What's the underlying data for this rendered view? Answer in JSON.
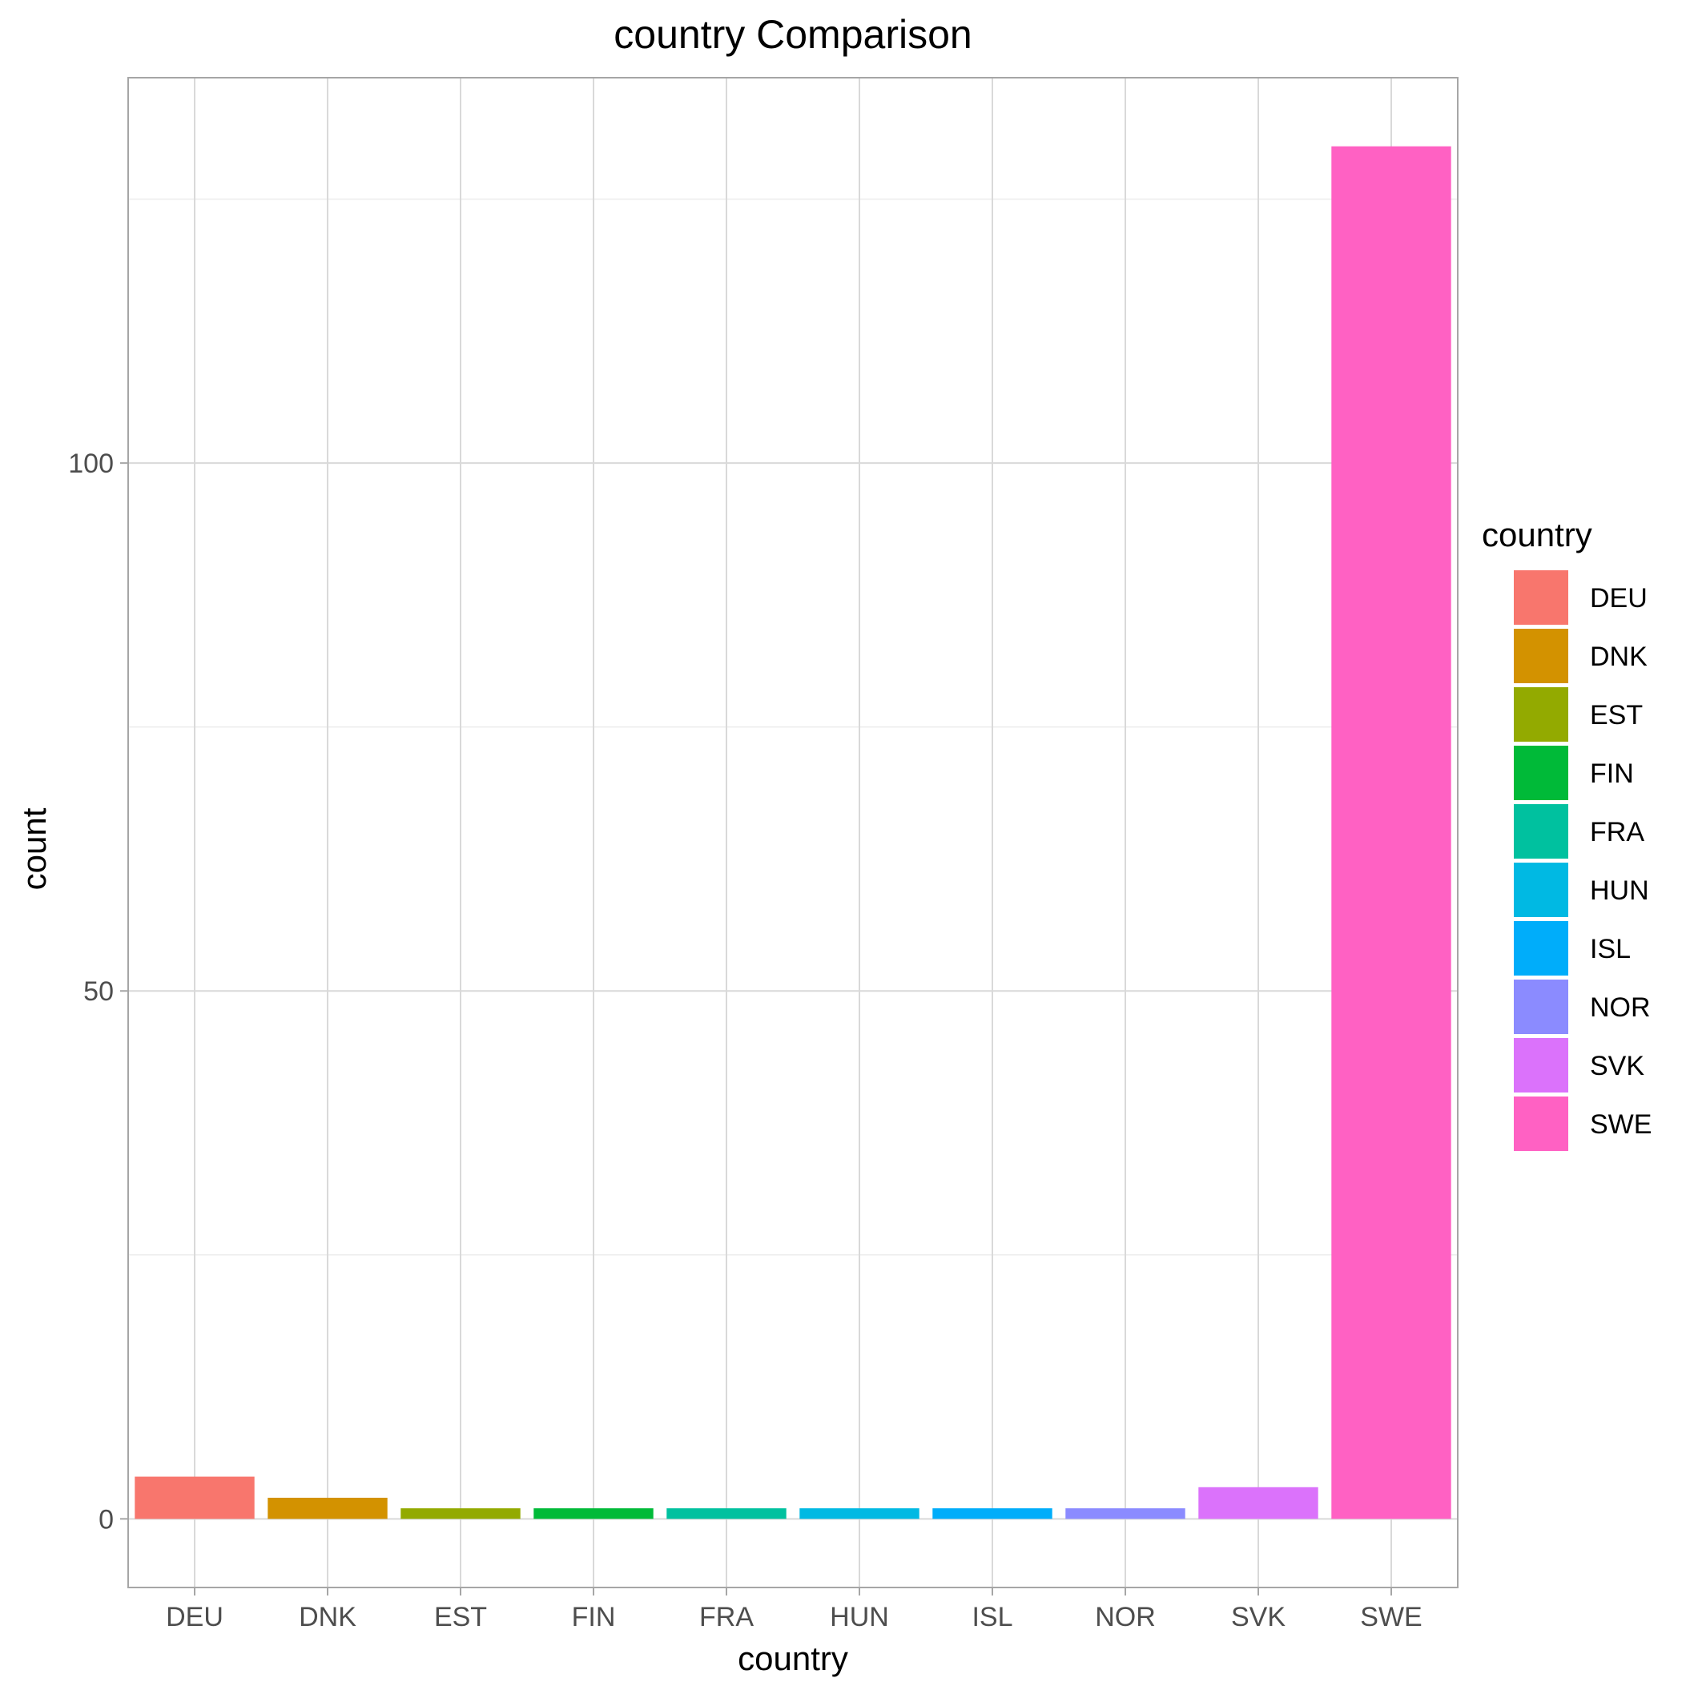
{
  "chart_data": {
    "type": "bar",
    "title": "country Comparison",
    "xlabel": "country",
    "ylabel": "count",
    "categories": [
      "DEU",
      "DNK",
      "EST",
      "FIN",
      "FRA",
      "HUN",
      "ISL",
      "NOR",
      "SVK",
      "SWE"
    ],
    "values": [
      4,
      2,
      1,
      1,
      1,
      1,
      1,
      1,
      3,
      130
    ],
    "colors": [
      "#F8766D",
      "#D39200",
      "#93AA00",
      "#00BA38",
      "#00C19F",
      "#00B9E3",
      "#00ADFA",
      "#8B8BFF",
      "#DB72FB",
      "#FF61C3"
    ],
    "ylim": [
      -6.5,
      136.5
    ],
    "yticks": [
      0,
      50,
      100
    ],
    "grid": true,
    "legend": {
      "title": "country",
      "position": "right"
    }
  }
}
